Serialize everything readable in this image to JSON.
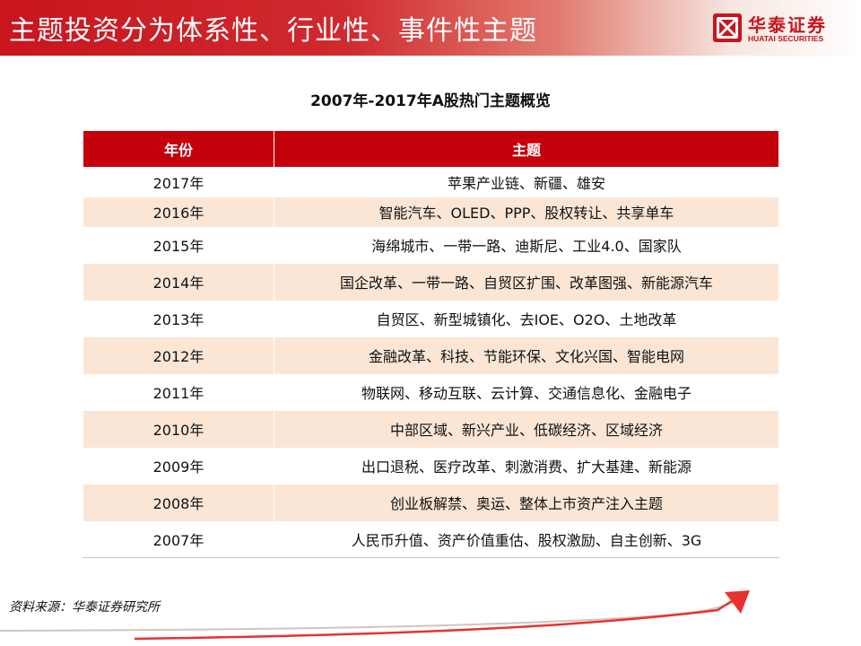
{
  "header": {
    "title": "主题投资分为体系性、行业性、事件性主题",
    "logo_cn": "华泰证券",
    "logo_en": "HUATAI SECURITIES"
  },
  "table": {
    "title": "2007年-2017年A股热门主题概览",
    "headers": [
      "年份",
      "主题"
    ],
    "rows": [
      {
        "year": "2017年",
        "themes": "苹果产业链、新疆、雄安"
      },
      {
        "year": "2016年",
        "themes": "智能汽车、OLED、PPP、股权转让、共享单车"
      },
      {
        "year": "2015年",
        "themes": "海绵城市、一带一路、迪斯尼、工业4.0、国家队"
      },
      {
        "year": "2014年",
        "themes": "国企改革、一带一路、自贸区扩围、改革图强、新能源汽车"
      },
      {
        "year": "2013年",
        "themes": "自贸区、新型城镇化、去IOE、O2O、土地改革"
      },
      {
        "year": "2012年",
        "themes": "金融改革、科技、节能环保、文化兴国、智能电网"
      },
      {
        "year": "2011年",
        "themes": "物联网、移动互联、云计算、交通信息化、金融电子"
      },
      {
        "year": "2010年",
        "themes": "中部区域、新兴产业、低碳经济、区域经济"
      },
      {
        "year": "2009年",
        "themes": "出口退税、医疗改革、刺激消费、扩大基建、新能源"
      },
      {
        "year": "2008年",
        "themes": "创业板解禁、奥运、整体上市资产注入主题"
      },
      {
        "year": "2007年",
        "themes": "人民币升值、资产价值重估、股权激励、自主创新、3G"
      }
    ]
  },
  "footer": {
    "source": "资料来源：华泰证券研究所"
  },
  "colors": {
    "brand_red": "#c4000b",
    "row_alt": "#fbe6d6"
  }
}
